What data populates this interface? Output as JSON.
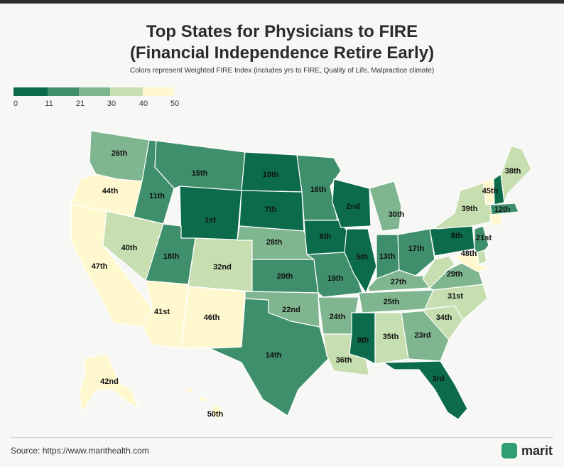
{
  "title_line1": "Top States for Physicians to FIRE",
  "title_line2": "(Financial Independence Retire Early)",
  "subtitle": "Colors represent Weighted FIRE Index (includes yrs to FIRE, Quality of Life, Malpractice climate)",
  "legend": {
    "ticks": [
      "0",
      "11",
      "21",
      "30",
      "40",
      "50"
    ],
    "colors": [
      "#0b6b4a",
      "#3f8f6c",
      "#7fb58f",
      "#c6deb0",
      "#fff8cf"
    ]
  },
  "states": [
    {
      "abbr": "WA",
      "rank": "26th",
      "color": "#7fb58f"
    },
    {
      "abbr": "OR",
      "rank": "44th",
      "color": "#fff8cf"
    },
    {
      "abbr": "CA",
      "rank": "47th",
      "color": "#fff8cf"
    },
    {
      "abbr": "ID",
      "rank": "11th",
      "color": "#3f8f6c"
    },
    {
      "abbr": "NV",
      "rank": "40th",
      "color": "#c6deb0"
    },
    {
      "abbr": "MT",
      "rank": "15th",
      "color": "#3f8f6c"
    },
    {
      "abbr": "WY",
      "rank": "1st",
      "color": "#0b6b4a"
    },
    {
      "abbr": "UT",
      "rank": "18th",
      "color": "#3f8f6c"
    },
    {
      "abbr": "AZ",
      "rank": "41st",
      "color": "#fff8cf"
    },
    {
      "abbr": "CO",
      "rank": "32nd",
      "color": "#c6deb0"
    },
    {
      "abbr": "NM",
      "rank": "46th",
      "color": "#fff8cf"
    },
    {
      "abbr": "ND",
      "rank": "10th",
      "color": "#0b6b4a"
    },
    {
      "abbr": "SD",
      "rank": "7th",
      "color": "#0b6b4a"
    },
    {
      "abbr": "NE",
      "rank": "28th",
      "color": "#7fb58f"
    },
    {
      "abbr": "KS",
      "rank": "20th",
      "color": "#3f8f6c"
    },
    {
      "abbr": "OK",
      "rank": "22nd",
      "color": "#7fb58f"
    },
    {
      "abbr": "TX",
      "rank": "14th",
      "color": "#3f8f6c"
    },
    {
      "abbr": "MN",
      "rank": "16th",
      "color": "#3f8f6c"
    },
    {
      "abbr": "IA",
      "rank": "6th",
      "color": "#0b6b4a"
    },
    {
      "abbr": "MO",
      "rank": "19th",
      "color": "#3f8f6c"
    },
    {
      "abbr": "AR",
      "rank": "24th",
      "color": "#7fb58f"
    },
    {
      "abbr": "LA",
      "rank": "36th",
      "color": "#c6deb0"
    },
    {
      "abbr": "WI",
      "rank": "2nd",
      "color": "#0b6b4a"
    },
    {
      "abbr": "IL",
      "rank": "5th",
      "color": "#0b6b4a"
    },
    {
      "abbr": "MI",
      "rank": "30th",
      "color": "#7fb58f"
    },
    {
      "abbr": "IN",
      "rank": "13th",
      "color": "#3f8f6c"
    },
    {
      "abbr": "OH",
      "rank": "17th",
      "color": "#3f8f6c"
    },
    {
      "abbr": "KY",
      "rank": "27th",
      "color": "#7fb58f"
    },
    {
      "abbr": "TN",
      "rank": "25th",
      "color": "#7fb58f"
    },
    {
      "abbr": "MS",
      "rank": "9th",
      "color": "#0b6b4a"
    },
    {
      "abbr": "AL",
      "rank": "35th",
      "color": "#c6deb0"
    },
    {
      "abbr": "GA",
      "rank": "23rd",
      "color": "#7fb58f"
    },
    {
      "abbr": "FL",
      "rank": "3rd",
      "color": "#0b6b4a"
    },
    {
      "abbr": "SC",
      "rank": "34th",
      "color": "#c6deb0"
    },
    {
      "abbr": "NC",
      "rank": "31st",
      "color": "#c6deb0"
    },
    {
      "abbr": "VA",
      "rank": "29th",
      "color": "#7fb58f"
    },
    {
      "abbr": "WV",
      "rank": "",
      "color": "#c6deb0"
    },
    {
      "abbr": "PA",
      "rank": "8th",
      "color": "#0b6b4a"
    },
    {
      "abbr": "NY",
      "rank": "39th",
      "color": "#c6deb0"
    },
    {
      "abbr": "VT",
      "rank": "45th",
      "color": "#fff8cf"
    },
    {
      "abbr": "NH",
      "rank": "",
      "color": "#0b6b4a"
    },
    {
      "abbr": "ME",
      "rank": "38th",
      "color": "#c6deb0"
    },
    {
      "abbr": "MA",
      "rank": "12th",
      "color": "#3f8f6c"
    },
    {
      "abbr": "CT",
      "rank": "",
      "color": "#fff8cf"
    },
    {
      "abbr": "NJ",
      "rank": "21st",
      "color": "#3f8f6c"
    },
    {
      "abbr": "DE",
      "rank": "",
      "color": "#c6deb0"
    },
    {
      "abbr": "MD",
      "rank": "48th",
      "color": "#fff8cf"
    },
    {
      "abbr": "AK",
      "rank": "42nd",
      "color": "#fff8cf"
    },
    {
      "abbr": "HI",
      "rank": "50th",
      "color": "#fff8cf"
    }
  ],
  "footer": {
    "source": "Source: https://www.marithealth.com",
    "brand": "marit"
  }
}
